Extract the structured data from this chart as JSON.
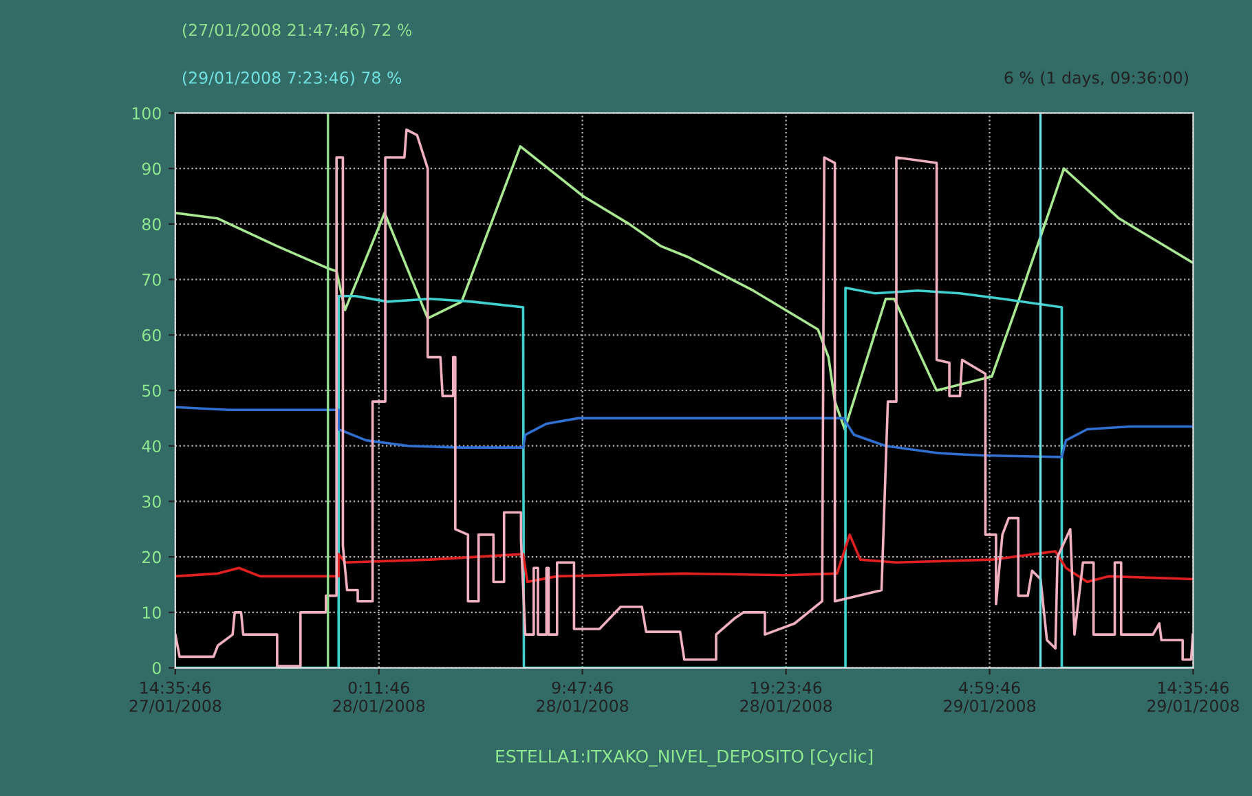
{
  "chart_data": {
    "type": "line",
    "xlabel": "ESTELLA1:ITXAKO_NIVEL_DEPOSITO [Cyclic]",
    "xlim": [
      "2008-01-27T14:35:46",
      "2008-01-29T14:35:46"
    ],
    "xticks": [
      {
        "value": "2008-01-27T14:35:46",
        "label": "14:35:46\n27/01/2008"
      },
      {
        "value": "2008-01-28T00:11:46",
        "label": "0:11:46\n28/01/2008"
      },
      {
        "value": "2008-01-28T09:47:46",
        "label": "9:47:46\n28/01/2008"
      },
      {
        "value": "2008-01-28T19:23:46",
        "label": "19:23:46\n28/01/2008"
      },
      {
        "value": "2008-01-29T04:59:46",
        "label": "4:59:46\n29/01/2008"
      },
      {
        "value": "2008-01-29T14:35:46",
        "label": "14:35:46\n29/01/2008"
      }
    ],
    "ylim": [
      0,
      100
    ],
    "yticks": [
      0,
      10,
      20,
      30,
      40,
      50,
      60,
      70,
      80,
      90,
      100
    ],
    "grid": true,
    "legend": false,
    "series": [
      {
        "color": "#a8e890",
        "x": [
          "2008-01-27T14:36",
          "2008-01-27T16:36",
          "2008-01-27T19:24",
          "2008-01-27T21:48",
          "2008-01-27T22:12",
          "2008-01-27T22:36",
          "2008-01-28T00:28",
          "2008-01-28T02:30",
          "2008-01-28T04:06",
          "2008-01-28T06:52",
          "2008-01-28T09:50",
          "2008-01-28T12:00",
          "2008-01-28T13:30",
          "2008-01-28T14:48",
          "2008-01-28T17:51",
          "2008-01-28T20:54",
          "2008-01-28T21:24",
          "2008-01-28T21:42",
          "2008-01-28T22:10",
          "2008-01-29T00:06",
          "2008-01-29T00:30",
          "2008-01-29T02:30",
          "2008-01-29T05:06",
          "2008-01-29T06:21",
          "2008-01-29T08:30",
          "2008-01-29T11:06",
          "2008-01-29T14:35"
        ],
        "values": [
          82,
          81,
          76,
          72,
          71.5,
          64.5,
          82,
          63,
          66,
          94,
          85,
          80,
          76,
          74,
          68,
          61,
          56,
          48,
          43,
          66.5,
          66.5,
          50,
          52.5,
          66,
          90,
          81,
          73
        ]
      },
      {
        "color": "#40d0d0",
        "x": [
          "2008-01-27T14:36",
          "2008-01-27T22:18",
          "2008-01-27T22:18",
          "2008-01-27T23:06",
          "2008-01-28T00:36",
          "2008-01-28T02:36",
          "2008-01-28T04:36",
          "2008-01-28T07:00",
          "2008-01-28T07:02",
          "2008-01-28T22:12",
          "2008-01-28T22:12",
          "2008-01-28T23:36",
          "2008-01-29T01:36",
          "2008-01-29T03:36",
          "2008-01-29T05:36",
          "2008-01-29T08:24",
          "2008-01-29T08:24",
          "2008-01-29T14:35"
        ],
        "values": [
          0,
          0,
          67,
          67,
          66,
          66.5,
          66,
          65,
          0,
          0,
          68.5,
          67.5,
          68,
          67.5,
          66.5,
          65,
          0,
          0
        ]
      },
      {
        "color": "#3070d0",
        "x": [
          "2008-01-27T14:36",
          "2008-01-27T17:06",
          "2008-01-27T22:18",
          "2008-01-27T22:18",
          "2008-01-27T23:36",
          "2008-01-28T01:36",
          "2008-01-28T04:06",
          "2008-01-28T07:00",
          "2008-01-28T07:06",
          "2008-01-28T08:06",
          "2008-01-28T09:36",
          "2008-01-28T14:36",
          "2008-01-28T22:06",
          "2008-01-28T22:36",
          "2008-01-29T00:06",
          "2008-01-29T02:36",
          "2008-01-29T04:36",
          "2008-01-29T08:24",
          "2008-01-29T08:36",
          "2008-01-29T09:36",
          "2008-01-29T11:36",
          "2008-01-29T14:35"
        ],
        "values": [
          47,
          46.5,
          46.5,
          43,
          41,
          40,
          39.7,
          39.7,
          42,
          44,
          45,
          45,
          45,
          42,
          40,
          38.7,
          38.3,
          38,
          41,
          43,
          43.5,
          43.5
        ]
      },
      {
        "color": "#e02020",
        "x": [
          "2008-01-27T14:36",
          "2008-01-27T16:36",
          "2008-01-27T17:36",
          "2008-01-27T18:36",
          "2008-01-27T22:18",
          "2008-01-27T22:18",
          "2008-01-27T22:36",
          "2008-01-28T02:36",
          "2008-01-28T07:00",
          "2008-01-28T07:12",
          "2008-01-28T08:36",
          "2008-01-28T14:36",
          "2008-01-28T19:24",
          "2008-01-28T21:48",
          "2008-01-28T22:24",
          "2008-01-28T22:54",
          "2008-01-29T00:36",
          "2008-01-29T05:06",
          "2008-01-29T08:06",
          "2008-01-29T08:36",
          "2008-01-29T09:36",
          "2008-01-29T10:36",
          "2008-01-29T14:35"
        ],
        "values": [
          16.5,
          17,
          18,
          16.5,
          16.5,
          20.5,
          19,
          19.5,
          20.5,
          15.5,
          16.5,
          17,
          16.7,
          17,
          24,
          19.5,
          19,
          19.5,
          21,
          18,
          15.5,
          16.5,
          16
        ]
      },
      {
        "color": "#f0b0c0",
        "x": [
          "2008-01-27T14:36",
          "2008-01-27T14:48",
          "2008-01-27T16:24",
          "2008-01-27T16:36",
          "2008-01-27T17:18",
          "2008-01-27T17:24",
          "2008-01-27T17:42",
          "2008-01-27T17:48",
          "2008-01-27T19:24",
          "2008-01-27T19:24",
          "2008-01-27T20:30",
          "2008-01-27T20:30",
          "2008-01-27T21:42",
          "2008-01-27T21:42",
          "2008-01-27T22:12",
          "2008-01-27T22:12",
          "2008-01-27T22:30",
          "2008-01-27T22:30",
          "2008-01-27T22:42",
          "2008-01-27T23:12",
          "2008-01-27T23:12",
          "2008-01-27T23:54",
          "2008-01-27T23:54",
          "2008-01-28T00:30",
          "2008-01-28T00:30",
          "2008-01-28T01:24",
          "2008-01-28T01:30",
          "2008-01-28T02:00",
          "2008-01-28T02:30",
          "2008-01-28T02:30",
          "2008-01-28T03:06",
          "2008-01-28T03:12",
          "2008-01-28T03:42",
          "2008-01-28T03:42",
          "2008-01-28T03:48",
          "2008-01-28T03:48",
          "2008-01-28T04:24",
          "2008-01-28T04:24",
          "2008-01-28T04:54",
          "2008-01-28T04:54",
          "2008-01-28T05:36",
          "2008-01-28T05:36",
          "2008-01-28T06:06",
          "2008-01-28T06:06",
          "2008-01-28T06:54",
          "2008-01-28T06:54",
          "2008-01-28T07:06",
          "2008-01-28T07:30",
          "2008-01-28T07:30",
          "2008-01-28T07:42",
          "2008-01-28T07:42",
          "2008-01-28T08:06",
          "2008-01-28T08:06",
          "2008-01-28T08:12",
          "2008-01-28T08:12",
          "2008-01-28T08:36",
          "2008-01-28T08:36",
          "2008-01-28T09:24",
          "2008-01-28T09:24",
          "2008-01-28T10:36",
          "2008-01-28T11:06",
          "2008-01-28T11:36",
          "2008-01-28T12:36",
          "2008-01-28T12:48",
          "2008-01-28T14:24",
          "2008-01-28T14:36",
          "2008-01-28T16:06",
          "2008-01-28T16:06",
          "2008-01-28T17:00",
          "2008-01-28T17:24",
          "2008-01-28T18:24",
          "2008-01-28T18:24",
          "2008-01-28T19:48",
          "2008-01-28T21:06",
          "2008-01-28T21:12",
          "2008-01-28T21:42",
          "2008-01-28T21:42",
          "2008-01-28T23:54",
          "2008-01-29T00:12",
          "2008-01-29T00:36",
          "2008-01-29T00:36",
          "2008-01-29T02:30",
          "2008-01-29T02:30",
          "2008-01-29T03:06",
          "2008-01-29T03:06",
          "2008-01-29T03:36",
          "2008-01-29T03:42",
          "2008-01-29T04:48",
          "2008-01-29T04:48",
          "2008-01-29T05:18",
          "2008-01-29T05:18",
          "2008-01-29T05:36",
          "2008-01-29T05:54",
          "2008-01-29T06:21",
          "2008-01-29T06:21",
          "2008-01-29T06:48",
          "2008-01-29T07:00",
          "2008-01-29T07:24",
          "2008-01-29T07:42",
          "2008-01-29T08:06",
          "2008-01-29T08:12",
          "2008-01-29T08:48",
          "2008-01-29T09:00",
          "2008-01-29T09:24",
          "2008-01-29T09:54",
          "2008-01-29T09:54",
          "2008-01-29T10:54",
          "2008-01-29T10:54",
          "2008-01-29T11:12",
          "2008-01-29T11:12",
          "2008-01-29T12:42",
          "2008-01-29T13:00",
          "2008-01-29T13:06",
          "2008-01-29T14:06",
          "2008-01-29T14:06",
          "2008-01-29T14:30",
          "2008-01-29T14:35"
        ],
        "values": [
          6,
          2,
          2,
          4,
          6,
          10,
          10,
          6,
          6,
          0.3,
          0.3,
          10,
          10,
          13,
          13,
          92,
          92,
          22,
          14,
          14,
          12,
          12,
          48,
          48,
          92,
          92,
          97,
          96,
          90,
          56,
          56,
          49,
          49,
          56,
          56,
          25,
          24,
          12,
          12,
          24,
          24,
          15.5,
          15.5,
          28,
          28,
          23,
          6,
          6,
          18,
          18,
          6,
          6,
          18,
          18,
          6,
          6,
          19,
          19,
          7,
          7,
          9,
          11,
          11,
          6.5,
          6.5,
          1.5,
          1.5,
          6,
          9,
          10,
          10,
          6,
          8,
          12,
          92,
          91,
          12,
          14,
          48,
          48,
          92,
          91,
          55.5,
          55,
          49,
          49,
          55.5,
          53,
          24,
          24,
          11.5,
          24,
          27,
          27,
          13,
          13,
          17.5,
          16,
          5,
          3.5,
          20,
          25,
          6,
          19,
          19,
          6,
          6,
          19,
          19,
          6,
          6,
          8,
          5,
          5,
          1.5,
          1.5,
          6
        ]
      }
    ],
    "ref_lines": [
      {
        "axis": "x",
        "value": "2008-01-27T21:47:46",
        "label": "(27/01/2008 21:47:46) 72 %",
        "color": "#90e090"
      },
      {
        "axis": "x",
        "value": "2008-01-29T07:23:46",
        "label": "(29/01/2008 7:23:46) 78 %",
        "color": "#70e0e0"
      }
    ],
    "annotations": [
      "6 % (1 days, 09:36:00)"
    ]
  }
}
